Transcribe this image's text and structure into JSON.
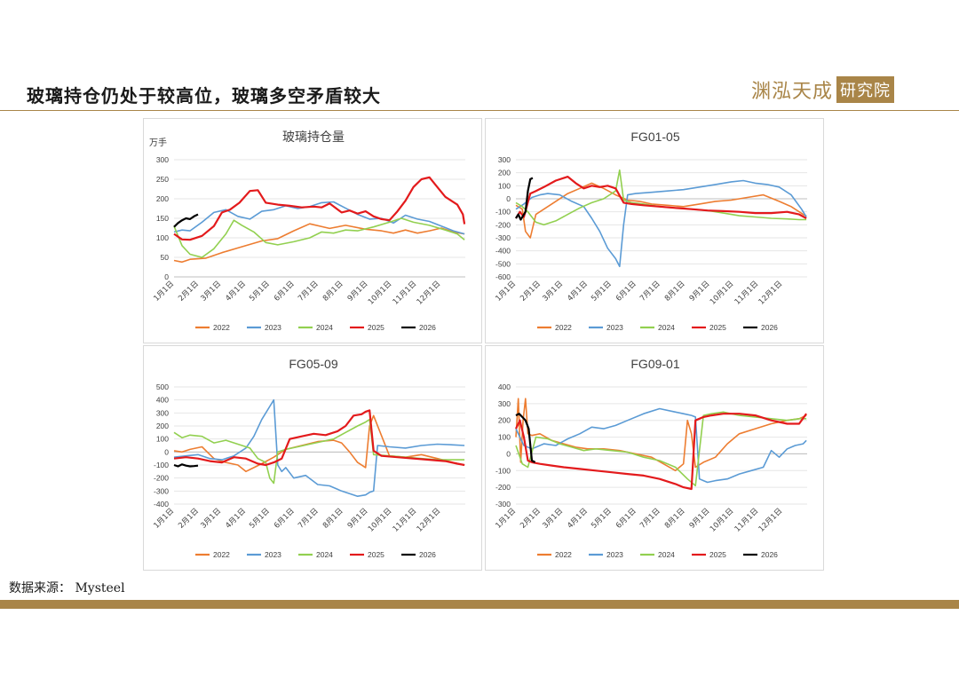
{
  "header": {
    "title": "玻璃持仓仍处于较高位，玻璃多空矛盾较大",
    "logo_main": "渊泓天成",
    "logo_box": "研究院"
  },
  "source": "数据来源： Mysteel",
  "colors": {
    "2022": "#ed7d31",
    "2023": "#5b9bd5",
    "2024": "#92d050",
    "2025": "#e31a1c",
    "2026": "#000000",
    "brand": "#a98548"
  },
  "month_labels": [
    "1月1日",
    "2月1日",
    "3月1日",
    "4月1日",
    "5月1日",
    "6月1日",
    "7月1日",
    "8月1日",
    "9月1日",
    "10月1日",
    "11月1日",
    "12月1日"
  ],
  "chart_data": [
    {
      "type": "line",
      "title": "玻璃持仓量",
      "unit": "万手",
      "ylim": [
        0,
        300
      ],
      "yticks": [
        0,
        50,
        100,
        150,
        200,
        250,
        300
      ],
      "series": [
        {
          "name": "2022",
          "x": [
            0,
            10,
            20,
            40,
            60,
            80,
            110,
            130,
            150,
            170,
            195,
            215,
            240,
            260,
            275,
            290,
            305,
            320,
            335,
            350,
            364
          ],
          "y": [
            42,
            38,
            45,
            48,
            62,
            74,
            92,
            98,
            118,
            136,
            124,
            132,
            122,
            118,
            112,
            120,
            112,
            118,
            125,
            115,
            110
          ]
        },
        {
          "name": "2023",
          "x": [
            0,
            10,
            20,
            35,
            50,
            65,
            80,
            95,
            110,
            125,
            140,
            155,
            170,
            185,
            200,
            215,
            230,
            245,
            260,
            275,
            290,
            305,
            320,
            335,
            350,
            364
          ],
          "y": [
            115,
            120,
            118,
            140,
            165,
            172,
            155,
            148,
            168,
            172,
            182,
            175,
            180,
            190,
            192,
            176,
            160,
            148,
            150,
            138,
            158,
            148,
            142,
            130,
            118,
            110
          ]
        },
        {
          "name": "2024",
          "x": [
            0,
            10,
            20,
            35,
            50,
            65,
            75,
            85,
            100,
            115,
            130,
            150,
            170,
            185,
            200,
            215,
            230,
            250,
            270,
            285,
            300,
            320,
            340,
            355,
            364
          ],
          "y": [
            130,
            80,
            58,
            50,
            72,
            110,
            145,
            132,
            115,
            88,
            82,
            90,
            100,
            115,
            112,
            120,
            118,
            128,
            140,
            150,
            140,
            132,
            120,
            110,
            95
          ]
        },
        {
          "name": "2025",
          "x": [
            0,
            10,
            20,
            35,
            50,
            60,
            70,
            82,
            95,
            105,
            115,
            130,
            145,
            160,
            175,
            185,
            195,
            210,
            220,
            230,
            240,
            250,
            260,
            270,
            280,
            290,
            300,
            310,
            320,
            330,
            340,
            355,
            362,
            364
          ],
          "y": [
            110,
            96,
            95,
            105,
            130,
            165,
            172,
            190,
            220,
            222,
            190,
            185,
            182,
            178,
            180,
            178,
            188,
            165,
            170,
            162,
            168,
            155,
            148,
            145,
            168,
            195,
            230,
            250,
            255,
            230,
            205,
            185,
            160,
            135
          ]
        },
        {
          "name": "2026",
          "x": [
            0,
            5,
            10,
            15,
            20,
            25,
            30
          ],
          "y": [
            128,
            138,
            145,
            150,
            148,
            155,
            160
          ]
        }
      ]
    },
    {
      "type": "line",
      "title": "FG01-05",
      "ylim": [
        -600,
        300
      ],
      "yticks": [
        300,
        200,
        100,
        0,
        -100,
        -200,
        -300,
        -400,
        -500,
        -600
      ],
      "series": [
        {
          "name": "2022",
          "x": [
            0,
            8,
            12,
            18,
            25,
            35,
            50,
            65,
            80,
            95,
            110,
            125,
            140,
            155,
            170,
            190,
            210,
            230,
            250,
            270,
            290,
            310,
            330,
            345,
            360,
            364
          ],
          "y": [
            -50,
            -80,
            -250,
            -300,
            -120,
            -80,
            -20,
            40,
            80,
            120,
            80,
            30,
            -10,
            -20,
            -40,
            -50,
            -60,
            -40,
            -20,
            -10,
            10,
            30,
            -20,
            -60,
            -120,
            -130
          ]
        },
        {
          "name": "2023",
          "x": [
            0,
            10,
            20,
            30,
            40,
            55,
            70,
            85,
            95,
            105,
            115,
            125,
            130,
            135,
            140,
            150,
            170,
            190,
            210,
            230,
            250,
            270,
            285,
            300,
            315,
            330,
            345,
            358,
            364
          ],
          "y": [
            -80,
            -40,
            10,
            30,
            40,
            30,
            -20,
            -60,
            -150,
            -250,
            -380,
            -460,
            -520,
            -200,
            30,
            40,
            50,
            60,
            70,
            90,
            110,
            130,
            140,
            120,
            110,
            90,
            30,
            -80,
            -140
          ]
        },
        {
          "name": "2024",
          "x": [
            0,
            8,
            15,
            25,
            35,
            50,
            65,
            80,
            95,
            110,
            125,
            130,
            135,
            145,
            160,
            180,
            200,
            220,
            240,
            260,
            280,
            300,
            320,
            340,
            355,
            364
          ],
          "y": [
            -30,
            -60,
            -100,
            -180,
            -200,
            -170,
            -120,
            -70,
            -30,
            0,
            60,
            220,
            -10,
            -30,
            -40,
            -60,
            -70,
            -80,
            -90,
            -110,
            -130,
            -140,
            -150,
            -155,
            -160,
            -160
          ]
        },
        {
          "name": "2025",
          "x": [
            0,
            5,
            10,
            18,
            25,
            35,
            50,
            65,
            75,
            85,
            95,
            105,
            115,
            125,
            135,
            145,
            160,
            180,
            200,
            220,
            240,
            260,
            280,
            300,
            320,
            340,
            355,
            364
          ],
          "y": [
            -150,
            -100,
            -140,
            40,
            60,
            90,
            140,
            170,
            120,
            80,
            100,
            90,
            100,
            80,
            -30,
            -40,
            -50,
            -60,
            -70,
            -80,
            -90,
            -95,
            -100,
            -110,
            -110,
            -100,
            -120,
            -150
          ]
        },
        {
          "name": "2026",
          "x": [
            0,
            3,
            6,
            9,
            12,
            15,
            18,
            21
          ],
          "y": [
            -150,
            -120,
            -160,
            -130,
            -100,
            60,
            150,
            160
          ]
        }
      ]
    },
    {
      "type": "line",
      "title": "FG05-09",
      "ylim": [
        -400,
        500
      ],
      "yticks": [
        500,
        400,
        300,
        200,
        100,
        0,
        -100,
        -200,
        -300,
        -400
      ],
      "series": [
        {
          "name": "2022",
          "x": [
            0,
            10,
            20,
            35,
            50,
            65,
            80,
            90,
            100,
            110,
            125,
            140,
            160,
            180,
            200,
            210,
            220,
            230,
            240,
            245,
            250,
            270,
            290,
            310,
            330,
            350,
            364
          ],
          "y": [
            10,
            0,
            20,
            40,
            -50,
            -80,
            -100,
            -150,
            -120,
            -90,
            -40,
            20,
            50,
            80,
            90,
            70,
            0,
            -80,
            -120,
            200,
            280,
            -30,
            -40,
            -20,
            -50,
            -80,
            -100
          ]
        },
        {
          "name": "2023",
          "x": [
            0,
            15,
            30,
            45,
            60,
            75,
            90,
            100,
            110,
            120,
            125,
            130,
            135,
            140,
            150,
            165,
            180,
            195,
            210,
            220,
            230,
            240,
            245,
            250,
            255,
            270,
            290,
            310,
            330,
            350,
            364
          ],
          "y": [
            -40,
            -30,
            -20,
            -50,
            -60,
            -30,
            30,
            120,
            250,
            350,
            400,
            -100,
            -150,
            -120,
            -200,
            -180,
            -250,
            -260,
            -300,
            -320,
            -340,
            -330,
            -310,
            -300,
            50,
            40,
            30,
            50,
            60,
            55,
            50
          ]
        },
        {
          "name": "2024",
          "x": [
            0,
            10,
            20,
            35,
            50,
            65,
            80,
            95,
            105,
            115,
            120,
            125,
            130,
            140,
            155,
            170,
            185,
            200,
            215,
            230,
            240,
            245,
            250,
            270,
            290,
            310,
            330,
            350,
            364
          ],
          "y": [
            150,
            110,
            130,
            120,
            70,
            90,
            60,
            30,
            -50,
            -80,
            -200,
            -240,
            0,
            20,
            40,
            60,
            80,
            100,
            150,
            200,
            230,
            250,
            -20,
            -30,
            -40,
            -50,
            -60,
            -60,
            -60
          ]
        },
        {
          "name": "2025",
          "x": [
            0,
            15,
            30,
            45,
            60,
            75,
            90,
            105,
            115,
            125,
            135,
            145,
            160,
            175,
            190,
            205,
            215,
            225,
            235,
            240,
            245,
            250,
            260,
            280,
            300,
            320,
            340,
            355,
            364
          ],
          "y": [
            -50,
            -40,
            -50,
            -70,
            -80,
            -40,
            -50,
            -90,
            -100,
            -80,
            -50,
            100,
            120,
            140,
            130,
            160,
            200,
            280,
            290,
            310,
            320,
            10,
            -30,
            -40,
            -50,
            -60,
            -70,
            -90,
            -100
          ]
        },
        {
          "name": "2026",
          "x": [
            0,
            5,
            10,
            15,
            20,
            25,
            30
          ],
          "y": [
            -100,
            -110,
            -95,
            -105,
            -110,
            -108,
            -105
          ]
        }
      ]
    },
    {
      "type": "line",
      "title": "FG09-01",
      "ylim": [
        -300,
        400
      ],
      "yticks": [
        400,
        300,
        200,
        100,
        0,
        -100,
        -200,
        -300
      ],
      "series": [
        {
          "name": "2022",
          "x": [
            0,
            3,
            6,
            9,
            12,
            15,
            20,
            30,
            45,
            60,
            75,
            90,
            110,
            130,
            150,
            170,
            185,
            200,
            210,
            215,
            220,
            225,
            235,
            250,
            265,
            280,
            300,
            320,
            340,
            355,
            364
          ],
          "y": [
            100,
            330,
            -50,
            200,
            330,
            120,
            110,
            120,
            80,
            60,
            40,
            30,
            30,
            20,
            0,
            -20,
            -60,
            -100,
            -60,
            200,
            120,
            -80,
            -50,
            -20,
            60,
            120,
            150,
            180,
            200,
            210,
            230
          ]
        },
        {
          "name": "2023",
          "x": [
            0,
            10,
            20,
            35,
            50,
            65,
            80,
            95,
            110,
            125,
            140,
            160,
            180,
            200,
            210,
            220,
            225,
            230,
            235,
            240,
            250,
            265,
            280,
            295,
            310,
            320,
            330,
            340,
            350,
            360,
            364
          ],
          "y": [
            150,
            50,
            30,
            60,
            50,
            90,
            120,
            160,
            150,
            170,
            200,
            240,
            270,
            250,
            240,
            230,
            220,
            -150,
            -160,
            -170,
            -160,
            -150,
            -120,
            -100,
            -80,
            20,
            -20,
            30,
            50,
            60,
            80
          ]
        },
        {
          "name": "2024",
          "x": [
            0,
            8,
            15,
            25,
            40,
            55,
            70,
            85,
            100,
            120,
            140,
            160,
            180,
            200,
            215,
            225,
            235,
            245,
            260,
            280,
            300,
            320,
            340,
            355,
            364
          ],
          "y": [
            50,
            -60,
            -80,
            100,
            90,
            60,
            40,
            20,
            30,
            20,
            10,
            -20,
            -40,
            -80,
            -150,
            -190,
            230,
            240,
            250,
            230,
            220,
            210,
            200,
            210,
            210
          ]
        },
        {
          "name": "2025",
          "x": [
            0,
            5,
            10,
            15,
            20,
            30,
            45,
            60,
            80,
            100,
            120,
            140,
            160,
            180,
            200,
            210,
            220,
            225,
            230,
            235,
            245,
            260,
            280,
            300,
            320,
            340,
            355,
            364
          ],
          "y": [
            150,
            200,
            100,
            -40,
            -50,
            -60,
            -70,
            -80,
            -90,
            -100,
            -110,
            -120,
            -130,
            -150,
            -180,
            -200,
            -210,
            200,
            210,
            220,
            230,
            240,
            240,
            230,
            200,
            180,
            180,
            240
          ]
        },
        {
          "name": "2026",
          "x": [
            0,
            4,
            8,
            12,
            16,
            20,
            24
          ],
          "y": [
            230,
            240,
            220,
            200,
            150,
            -40,
            -50
          ]
        }
      ]
    }
  ]
}
